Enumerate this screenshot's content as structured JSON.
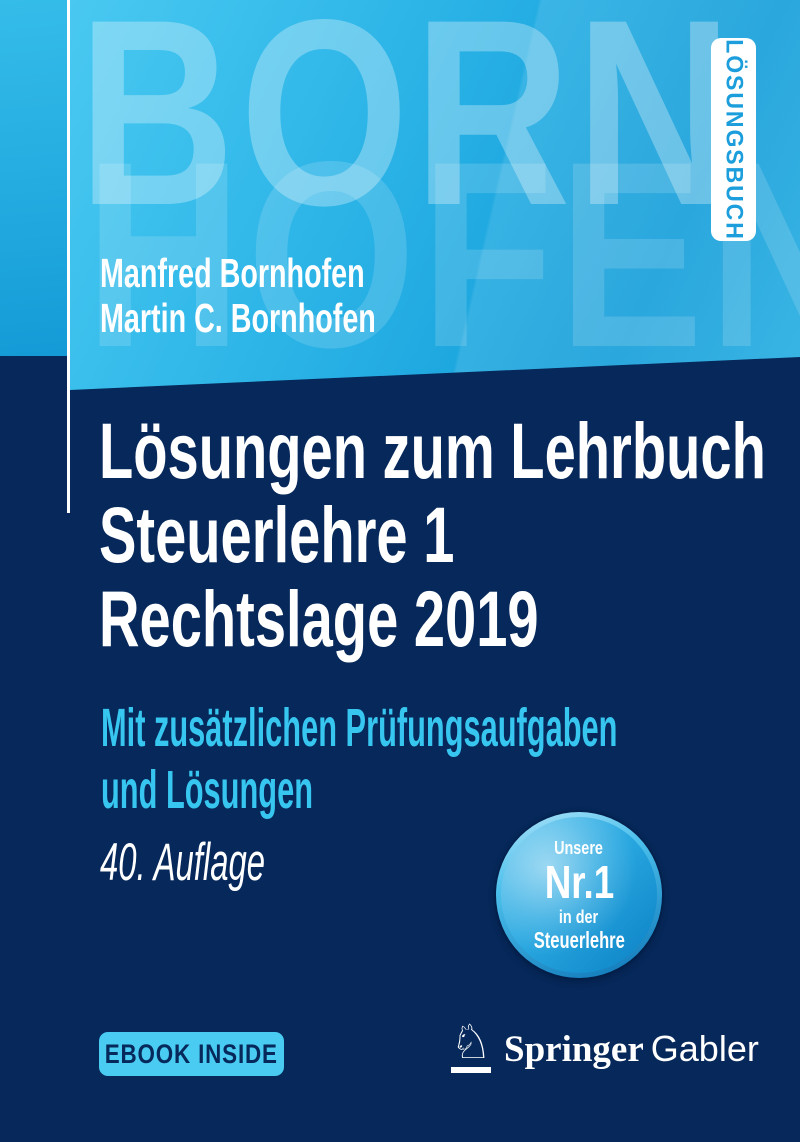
{
  "cover": {
    "series_tab_label": "LÖSUNGSBUCH",
    "watermark": {
      "line1": "BORN",
      "line2": "HOFEN"
    },
    "authors": [
      "Manfred Bornhofen",
      "Martin C. Bornhofen"
    ],
    "title_lines": [
      "Lösungen zum Lehrbuch",
      "Steuerlehre 1",
      "Rechtslage 2019"
    ],
    "subtitle_lines": [
      "Mit zusätzlichen Prüfungsaufgaben",
      "und Lösungen"
    ],
    "edition": "40. Auflage",
    "badge": {
      "top": "Unsere",
      "main": "Nr.1",
      "middle": "in der",
      "bottom": "Steuerlehre"
    },
    "ebook_label": "EBOOK INSIDE",
    "publisher": {
      "name_serif": "Springer",
      "name_light": "Gabler"
    },
    "colors": {
      "navy": "#06285a",
      "blue_gradient_top": "#49c9f1",
      "blue_gradient_bottom": "#129dd9",
      "subtitle_cyan": "#36c6ef",
      "tab_text_blue": "#1b9edb",
      "pill_bg": "#49cbf2",
      "badge_light": "#55c3ee",
      "badge_dark": "#0b80c4",
      "text_white": "#ffffff"
    }
  }
}
